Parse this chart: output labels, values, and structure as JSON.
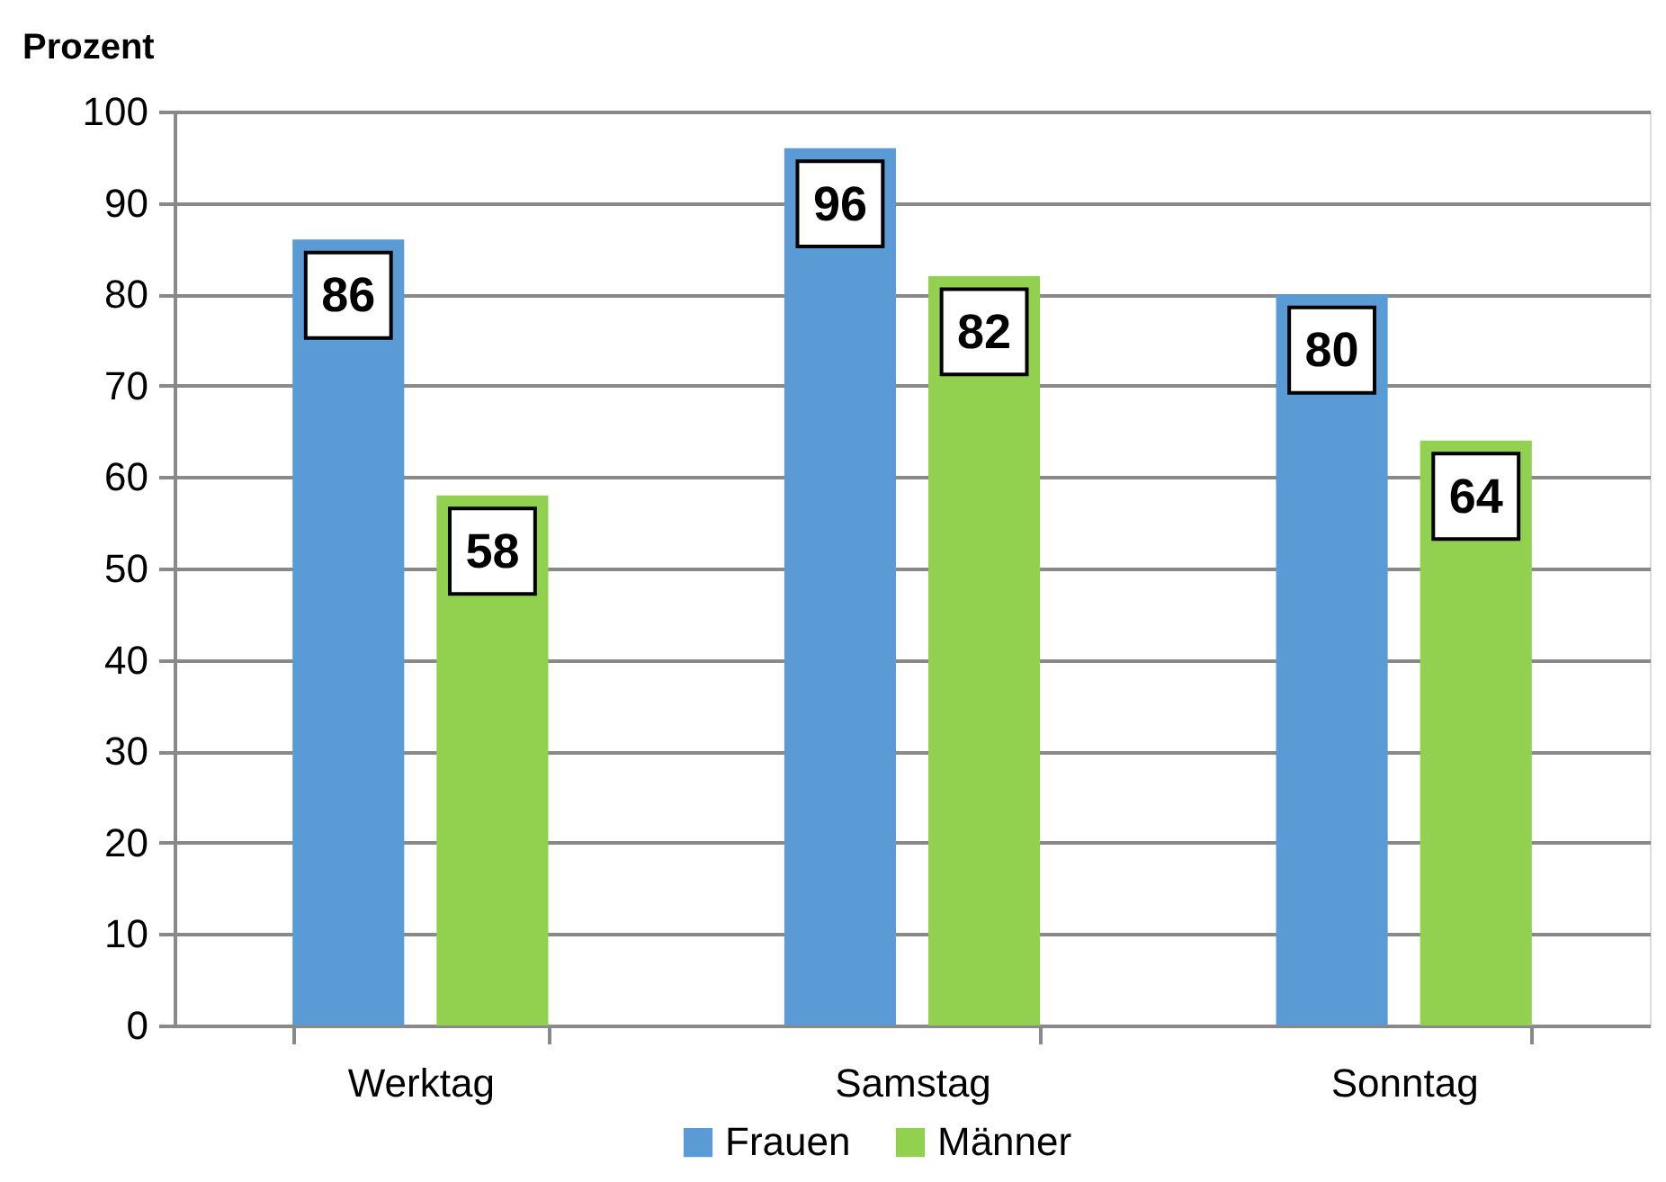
{
  "chart_data": {
    "type": "bar",
    "ylabel": "Prozent",
    "categories": [
      "Werktag",
      "Samstag",
      "Sonntag"
    ],
    "series": [
      {
        "name": "Frauen",
        "color": "#5b9bd5",
        "values": [
          86,
          96,
          80
        ]
      },
      {
        "name": "Männer",
        "color": "#92d050",
        "values": [
          58,
          82,
          64
        ]
      }
    ],
    "ylim": [
      0,
      100
    ],
    "yticks": [
      0,
      10,
      20,
      30,
      40,
      50,
      60,
      70,
      80,
      90,
      100
    ],
    "grid": "y",
    "legend": "bottom",
    "data_labels": true
  }
}
